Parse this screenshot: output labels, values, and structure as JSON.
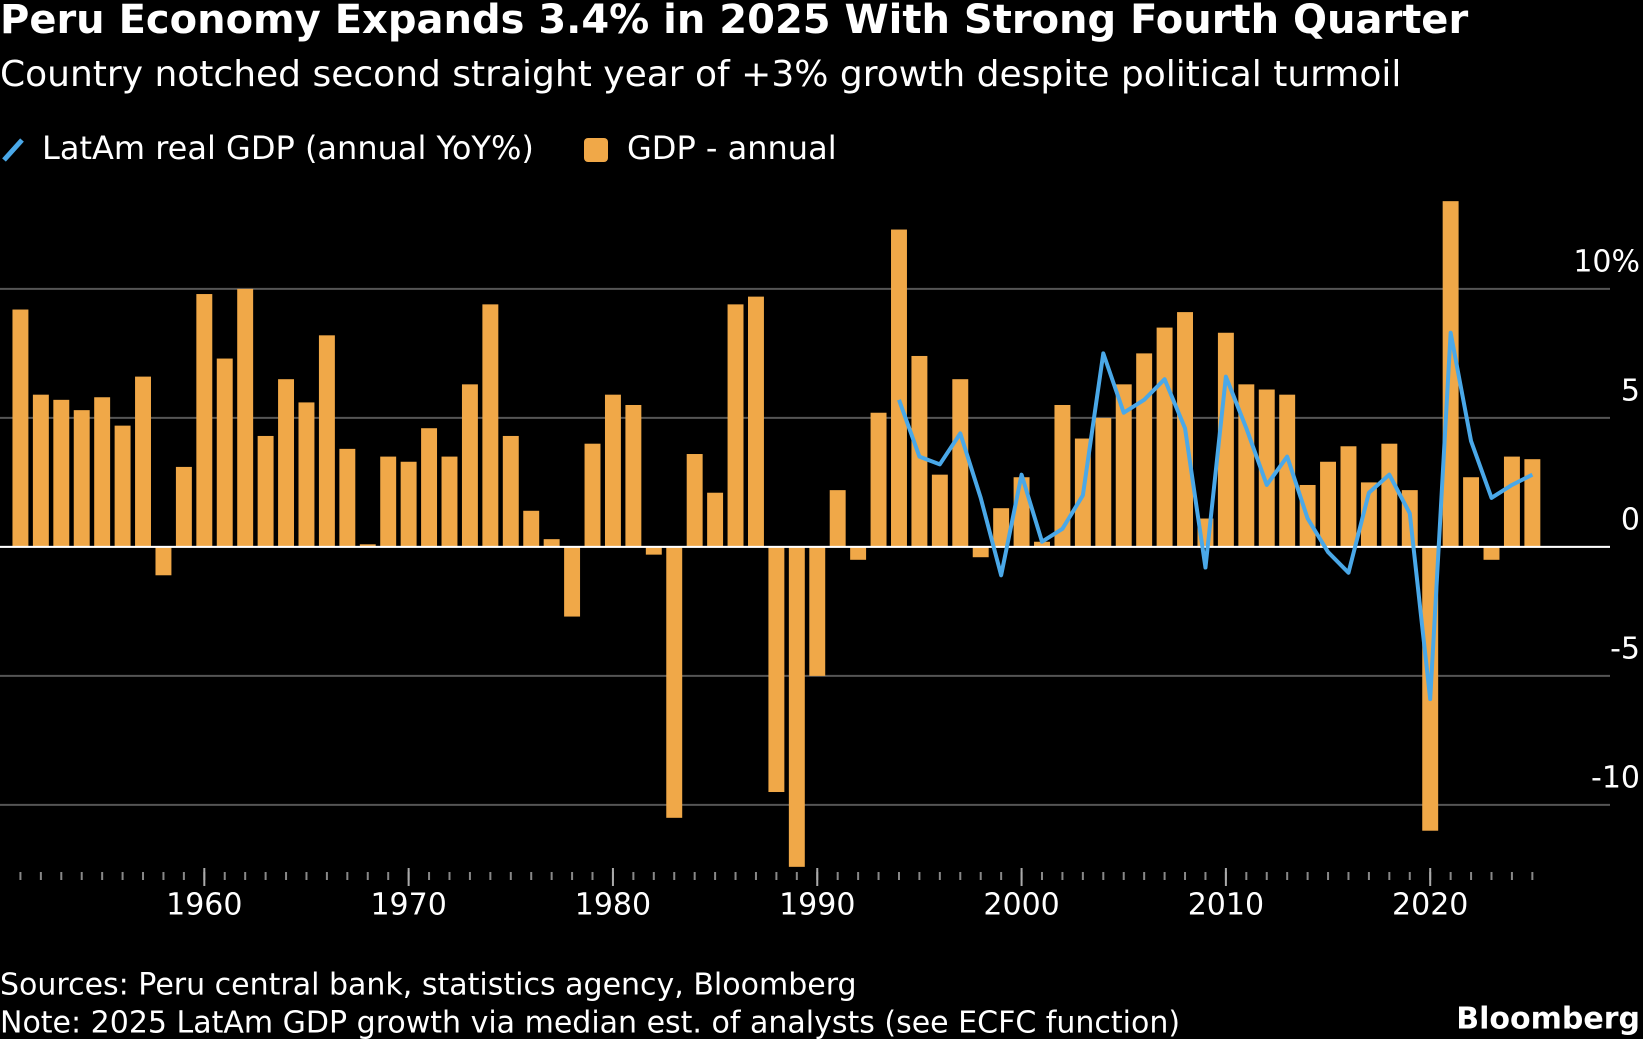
{
  "chart_data": {
    "type": "bar-line",
    "title": "Peru Economy Expands 3.4% in 2025 With Strong Fourth Quarter",
    "subtitle": "Country notched second straight year of +3% growth despite political turmoil",
    "x": [
      1951,
      1952,
      1953,
      1954,
      1955,
      1956,
      1957,
      1958,
      1959,
      1960,
      1961,
      1962,
      1963,
      1964,
      1965,
      1966,
      1967,
      1968,
      1969,
      1970,
      1971,
      1972,
      1973,
      1974,
      1975,
      1976,
      1977,
      1978,
      1979,
      1980,
      1981,
      1982,
      1983,
      1984,
      1985,
      1986,
      1987,
      1988,
      1989,
      1990,
      1991,
      1992,
      1993,
      1994,
      1995,
      1996,
      1997,
      1998,
      1999,
      2000,
      2001,
      2002,
      2003,
      2004,
      2005,
      2006,
      2007,
      2008,
      2009,
      2010,
      2011,
      2012,
      2013,
      2014,
      2015,
      2016,
      2017,
      2018,
      2019,
      2020,
      2021,
      2022,
      2023,
      2024,
      2025
    ],
    "series": [
      {
        "name": "LatAm real GDP (annual YoY%)",
        "type": "line",
        "color": "#4aa8e8",
        "values": [
          null,
          null,
          null,
          null,
          null,
          null,
          null,
          null,
          null,
          null,
          null,
          null,
          null,
          null,
          null,
          null,
          null,
          null,
          null,
          null,
          null,
          null,
          null,
          null,
          null,
          null,
          null,
          null,
          null,
          null,
          null,
          null,
          null,
          null,
          null,
          null,
          null,
          null,
          null,
          null,
          null,
          null,
          null,
          5.7,
          3.5,
          3.2,
          4.4,
          1.9,
          -1.1,
          2.8,
          0.2,
          0.7,
          2.0,
          7.5,
          5.2,
          5.7,
          6.5,
          4.6,
          -0.8,
          6.6,
          4.6,
          2.4,
          3.5,
          1.1,
          -0.2,
          -1.0,
          2.1,
          2.8,
          1.3,
          -5.9,
          8.3,
          4.1,
          1.9,
          2.4,
          2.8
        ]
      },
      {
        "name": "GDP - annual",
        "type": "bar",
        "color": "#f0a848",
        "values": [
          9.2,
          5.9,
          5.7,
          5.3,
          5.8,
          4.7,
          6.6,
          -1.1,
          3.1,
          9.8,
          7.3,
          10.0,
          4.3,
          6.5,
          5.6,
          8.2,
          3.8,
          0.1,
          3.5,
          3.3,
          4.6,
          3.5,
          6.3,
          9.4,
          4.3,
          1.4,
          0.3,
          -2.7,
          4.0,
          5.9,
          5.5,
          -0.3,
          -10.5,
          3.6,
          2.1,
          9.4,
          9.7,
          -9.5,
          -12.4,
          -5.0,
          2.2,
          -0.5,
          5.2,
          12.3,
          7.4,
          2.8,
          6.5,
          -0.4,
          1.5,
          2.7,
          0.2,
          5.5,
          4.2,
          5.0,
          6.3,
          7.5,
          8.5,
          9.1,
          1.1,
          8.3,
          6.3,
          6.1,
          5.9,
          2.4,
          3.3,
          3.9,
          2.5,
          4.0,
          2.2,
          -11.0,
          13.4,
          2.7,
          -0.5,
          3.5,
          3.4
        ]
      }
    ],
    "xlim": [
      1950,
      2028.8
    ],
    "xticks": [
      1960,
      1970,
      1980,
      1990,
      2000,
      2010,
      2020
    ],
    "ylim": [
      -12.6,
      13.6
    ],
    "yticks": [
      -10,
      -5,
      0,
      5,
      {
        "value": 10,
        "label": "10%"
      }
    ],
    "grid": true,
    "source": "Sources: Peru central bank, statistics agency, Bloomberg",
    "note": "Note: 2025 LatAm GDP growth via median est. of analysts (see ECFC function)",
    "brand": "Bloomberg"
  }
}
